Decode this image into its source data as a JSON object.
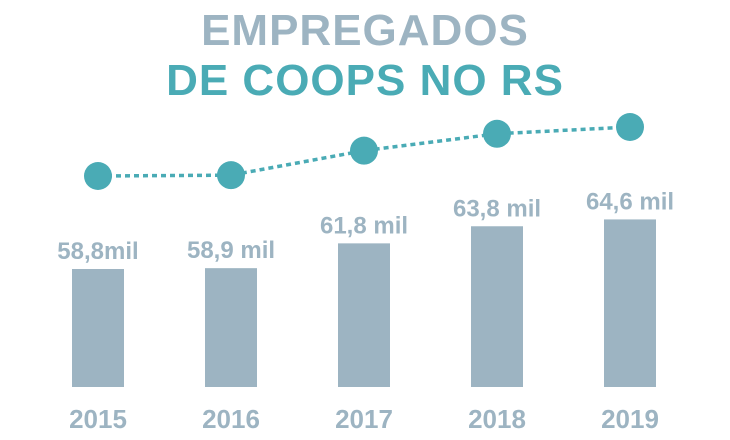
{
  "header": {
    "title_line1": "EMPREGADOS",
    "title_line2": "DE COOPS NO RS"
  },
  "colors": {
    "title1": "#9db4c2",
    "title2": "#4aabb5",
    "bar": "#9db4c2",
    "value_label": "#9db4c2",
    "year_label": "#9db4c2",
    "line": "#4aabb5",
    "marker": "#4aabb5"
  },
  "chart_data": {
    "type": "bar",
    "title": "EMPREGADOS DE COOPS NO RS",
    "categories": [
      "2015",
      "2016",
      "2017",
      "2018",
      "2019"
    ],
    "values": [
      58.8,
      58.9,
      61.8,
      63.8,
      64.6
    ],
    "value_labels": [
      "58,8mil",
      "58,9 mil",
      "61,8 mil",
      "63,8 mil",
      "64,6 mil"
    ],
    "unit": "mil",
    "overlay_line": {
      "style": "dashed",
      "markers": "circle"
    },
    "grid": false,
    "legend": "none"
  }
}
